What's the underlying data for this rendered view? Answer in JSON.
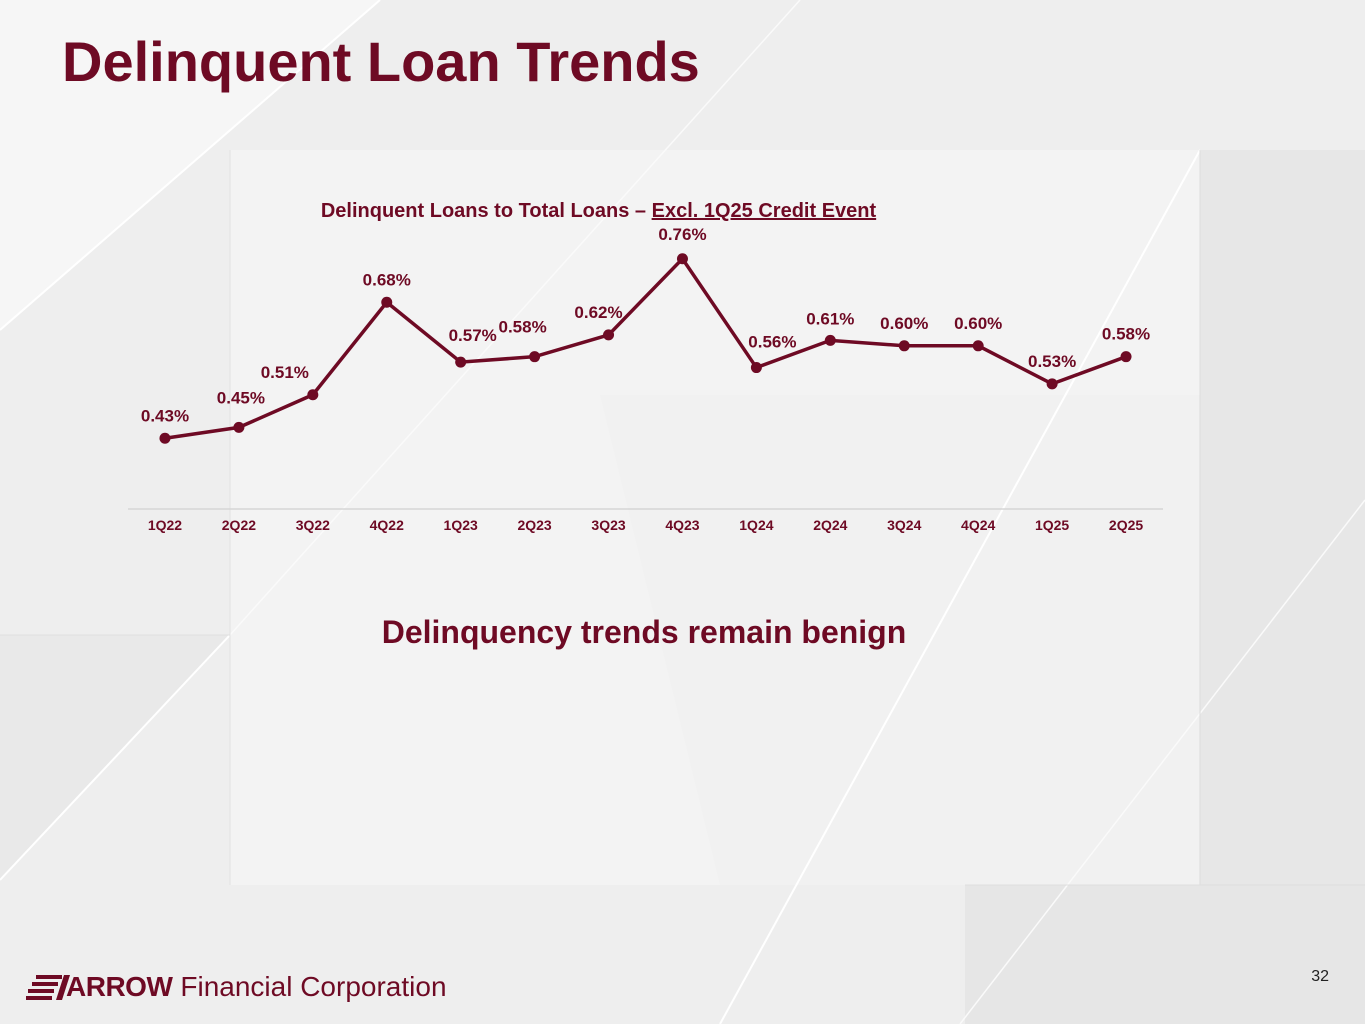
{
  "page": {
    "title": "Delinquent Loan Trends",
    "callout": "Delinquency trends remain benign",
    "page_number": "32"
  },
  "brand": {
    "logo_bold": "ARROW",
    "logo_text": "Financial Corporation",
    "primary_color": "#6e0a24"
  },
  "chart_data": {
    "type": "line",
    "title_main": "Delinquent Loans to Total Loans – ",
    "title_underlined": "Excl. 1Q25 Credit Event",
    "categories": [
      "1Q22",
      "2Q22",
      "3Q22",
      "4Q22",
      "1Q23",
      "2Q23",
      "3Q23",
      "4Q23",
      "1Q24",
      "2Q24",
      "3Q24",
      "4Q24",
      "1Q25",
      "2Q25"
    ],
    "values": [
      0.43,
      0.45,
      0.51,
      0.68,
      0.57,
      0.58,
      0.62,
      0.76,
      0.56,
      0.61,
      0.6,
      0.6,
      0.53,
      0.58
    ],
    "data_labels": [
      "0.43%",
      "0.45%",
      "0.51%",
      "0.68%",
      "0.57%",
      "0.58%",
      "0.62%",
      "0.76%",
      "0.56%",
      "0.61%",
      "0.60%",
      "0.60%",
      "0.53%",
      "0.58%"
    ],
    "unit": "%",
    "ylim": [
      0.3,
      0.8
    ],
    "grid": false,
    "legend": "none",
    "line_color": "#6e0a24"
  }
}
